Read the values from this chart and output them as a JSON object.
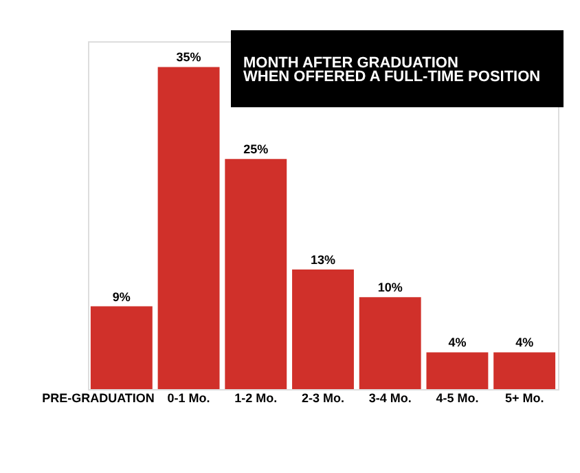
{
  "chart_data": {
    "type": "bar",
    "title": "MONTH AFTER GRADUATION\nWHEN OFFERED A FULL-TIME POSITION",
    "categories": [
      "PRE-GRADUATION",
      "0-1 Mo.",
      "1-2 Mo.",
      "2-3 Mo.",
      "3-4 Mo.",
      "4-5 Mo.",
      "5+ Mo."
    ],
    "values": [
      9,
      35,
      25,
      13,
      10,
      4,
      4
    ],
    "value_labels": [
      "9%",
      "35%",
      "25%",
      "13%",
      "10%",
      "4%",
      "4%"
    ],
    "color": "#d0302a",
    "tick_labels": "x",
    "grid": false
  }
}
